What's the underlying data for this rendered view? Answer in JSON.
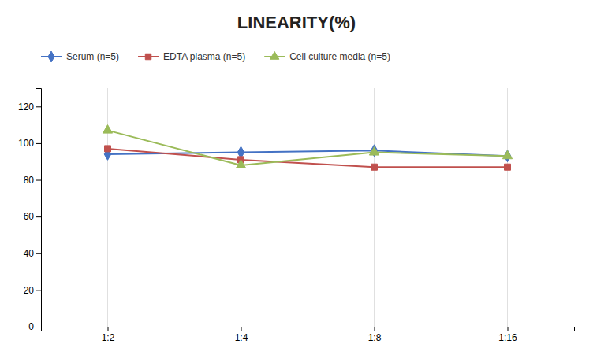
{
  "chart_data": {
    "type": "line",
    "title": "LINEARITY(%)",
    "categories": [
      "1:2",
      "1:4",
      "1:8",
      "1:16"
    ],
    "series": [
      {
        "name": "Serum (n=5)",
        "color": "#4472C4",
        "marker": "diamond",
        "values": [
          94,
          95,
          96,
          93
        ]
      },
      {
        "name": "EDTA plasma (n=5)",
        "color": "#C0504D",
        "marker": "square",
        "values": [
          97,
          91,
          87,
          87
        ]
      },
      {
        "name": "Cell culture media (n=5)",
        "color": "#9BBB59",
        "marker": "triangle",
        "values": [
          107,
          88,
          95,
          93
        ]
      }
    ],
    "ylim": [
      0,
      130
    ],
    "yticks": [
      0,
      20,
      40,
      60,
      80,
      100,
      120
    ],
    "grid": "x",
    "legend": "top"
  }
}
